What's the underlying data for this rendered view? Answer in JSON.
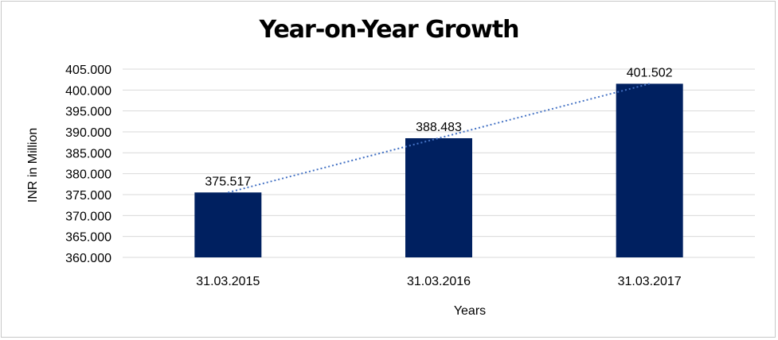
{
  "chart_data": {
    "type": "bar",
    "title": "Year-on-Year Growth",
    "xlabel": "Years",
    "ylabel": "INR in Million",
    "categories": [
      "31.03.2015",
      "31.03.2016",
      "31.03.2017"
    ],
    "values": [
      375.517,
      388.483,
      401.502
    ],
    "value_labels": [
      "375.517",
      "388.483",
      "401.502"
    ],
    "ylim": [
      360,
      405
    ],
    "ytick_step": 5,
    "ytick_labels": [
      "360.000",
      "365.000",
      "370.000",
      "375.000",
      "380.000",
      "385.000",
      "390.000",
      "395.000",
      "400.000",
      "405.000"
    ],
    "grid": true,
    "legend": "none",
    "trendline": "linear-dotted",
    "colors": {
      "bar": "#002060",
      "trendline": "#4472c4",
      "grid": "#d9d9d9",
      "frame": "#c8c8c8"
    }
  }
}
